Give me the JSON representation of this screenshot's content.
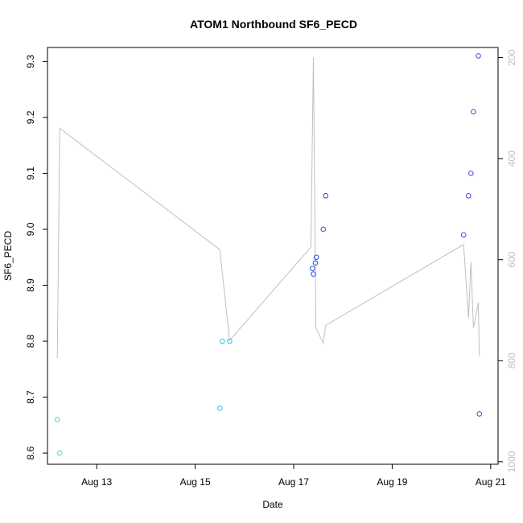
{
  "chart_data": {
    "type": "scatter",
    "title": "ATOM1 Northbound SF6_PECD",
    "xlabel": "Date",
    "ylabel": "SF6_PECD",
    "x_ticks": [
      {
        "label": "Aug 13",
        "value": 13
      },
      {
        "label": "Aug 15",
        "value": 15
      },
      {
        "label": "Aug 17",
        "value": 17
      },
      {
        "label": "Aug 19",
        "value": 19
      },
      {
        "label": "Aug 21",
        "value": 21
      }
    ],
    "xlim": [
      12.0,
      21.15
    ],
    "ylim": [
      8.58,
      9.325
    ],
    "y_ticks": [
      8.6,
      8.7,
      8.8,
      8.9,
      9.0,
      9.1,
      9.2,
      9.3
    ],
    "y_right": {
      "label": "",
      "color": "#c0c0c0",
      "lim": [
        1005,
        180
      ],
      "ticks": [
        200,
        400,
        600,
        800,
        1000
      ]
    },
    "grid": false,
    "points": [
      {
        "x": 12.2,
        "y": 8.66,
        "color": "#40e0b0"
      },
      {
        "x": 12.25,
        "y": 8.6,
        "color": "#40e0b0"
      },
      {
        "x": 15.5,
        "y": 8.68,
        "color": "#20c8e8"
      },
      {
        "x": 15.55,
        "y": 8.8,
        "color": "#20c8e8"
      },
      {
        "x": 15.7,
        "y": 8.8,
        "color": "#20c8e8"
      },
      {
        "x": 17.38,
        "y": 8.93,
        "color": "#2850e8"
      },
      {
        "x": 17.4,
        "y": 8.92,
        "color": "#2850e8"
      },
      {
        "x": 17.44,
        "y": 8.94,
        "color": "#2850e8"
      },
      {
        "x": 17.46,
        "y": 8.95,
        "color": "#2850e8"
      },
      {
        "x": 17.6,
        "y": 9.0,
        "color": "#2850e8"
      },
      {
        "x": 17.65,
        "y": 9.06,
        "color": "#2850e8"
      },
      {
        "x": 20.45,
        "y": 8.99,
        "color": "#7030e0"
      },
      {
        "x": 20.55,
        "y": 9.06,
        "color": "#7030e0"
      },
      {
        "x": 20.6,
        "y": 9.1,
        "color": "#7030e0"
      },
      {
        "x": 20.65,
        "y": 9.21,
        "color": "#7030e0"
      },
      {
        "x": 20.75,
        "y": 9.31,
        "color": "#7030e0"
      },
      {
        "x": 20.77,
        "y": 8.67,
        "color": "#7030e0"
      }
    ],
    "depth_line": {
      "color": "#c0c0c0",
      "x": [
        12.2,
        12.25,
        15.5,
        15.7,
        17.35,
        17.4,
        17.45,
        17.6,
        17.65,
        20.45,
        20.55,
        20.6,
        20.65,
        20.75,
        20.77
      ],
      "y": [
        795,
        340,
        580,
        760,
        575,
        200,
        735,
        765,
        730,
        570,
        715,
        605,
        735,
        685,
        790
      ]
    }
  }
}
